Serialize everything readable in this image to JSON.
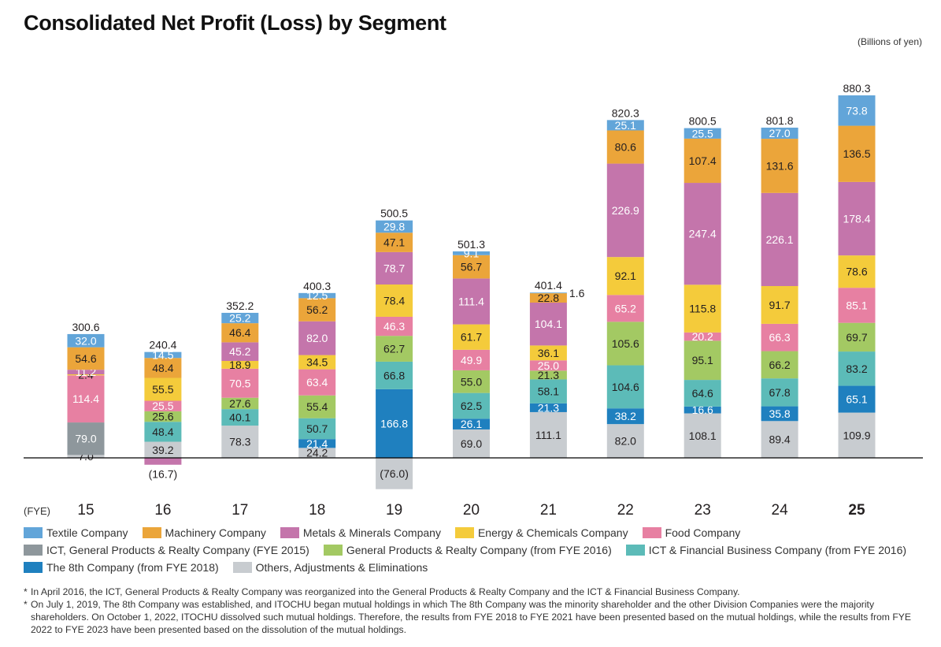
{
  "header": {
    "title": "Consolidated Net Profit (Loss) by Segment",
    "unit": "(Billions of yen)"
  },
  "axis": {
    "fye_label": "(FYE)"
  },
  "chart_data": {
    "type": "bar",
    "stacked": true,
    "title": "Consolidated Net Profit (Loss) by Segment",
    "xlabel": "(FYE)",
    "ylabel": "Billions of yen",
    "ylim": [
      -76.0,
      880.3
    ],
    "grid": false,
    "legend_position": "bottom",
    "categories": [
      "15",
      "16",
      "17",
      "18",
      "19",
      "20",
      "21",
      "22",
      "23",
      "24",
      "25"
    ],
    "highlight_category": "25",
    "totals": [
      "300.6",
      "240.4",
      "352.2",
      "400.3",
      "500.5",
      "501.3",
      "401.4",
      "820.3",
      "800.5",
      "801.8",
      "880.3"
    ],
    "series": [
      {
        "name": "Others, Adjustments & Eliminations",
        "color": "#c8ccd0",
        "label_color": "#231f20",
        "values": [
          7.0,
          39.2,
          78.3,
          24.2,
          -76.0,
          69.0,
          111.1,
          82.0,
          108.1,
          89.4,
          109.9
        ]
      },
      {
        "name": "ICT, General Products & Realty Company (FYE 2015)",
        "color": "#8e979c",
        "label_color": "#ffffff",
        "values": [
          79.0,
          null,
          null,
          null,
          null,
          null,
          null,
          null,
          null,
          null,
          null
        ]
      },
      {
        "name": "The 8th Company (from FYE 2018)",
        "color": "#1f80bf",
        "label_color": "#ffffff",
        "values": [
          null,
          null,
          null,
          21.4,
          166.8,
          26.1,
          21.3,
          38.2,
          16.6,
          35.8,
          65.1
        ]
      },
      {
        "name": "ICT & Financial Business Company (from FYE 2016)",
        "color": "#5cbbb8",
        "label_color": "#231f20",
        "values": [
          null,
          48.4,
          40.1,
          50.7,
          66.8,
          62.5,
          58.1,
          104.6,
          64.6,
          67.8,
          83.2
        ]
      },
      {
        "name": "General Products & Realty Company (from FYE 2016)",
        "color": "#a3c963",
        "label_color": "#231f20",
        "values": [
          null,
          25.6,
          27.6,
          55.4,
          62.7,
          55.0,
          21.3,
          105.6,
          95.1,
          66.2,
          69.7
        ]
      },
      {
        "name": "Food Company",
        "color": "#e780a2",
        "label_color": "#ffffff",
        "values": [
          114.4,
          25.5,
          70.5,
          63.4,
          46.3,
          49.9,
          25.0,
          65.2,
          20.2,
          66.3,
          85.1
        ]
      },
      {
        "name": "Energy & Chemicals Company",
        "color": "#f4cb3b",
        "label_color": "#231f20",
        "values": [
          2.4,
          55.5,
          18.9,
          34.5,
          78.4,
          61.7,
          36.1,
          92.1,
          115.8,
          91.7,
          78.6
        ]
      },
      {
        "name": "Metals & Minerals Company",
        "color": "#c475ab",
        "label_color": "#ffffff",
        "values": [
          11.2,
          -16.7,
          45.2,
          82.0,
          78.7,
          111.4,
          104.1,
          226.9,
          247.4,
          226.1,
          178.4
        ]
      },
      {
        "name": "Machinery Company",
        "color": "#eba53a",
        "label_color": "#231f20",
        "values": [
          54.6,
          48.4,
          46.4,
          56.2,
          47.1,
          56.7,
          22.8,
          80.6,
          107.4,
          131.6,
          136.5
        ]
      },
      {
        "name": "Textile Company",
        "color": "#62a5d9",
        "label_color": "#ffffff",
        "values": [
          32.0,
          14.5,
          25.2,
          12.5,
          29.8,
          9.1,
          1.6,
          25.1,
          25.5,
          27.0,
          73.8
        ]
      }
    ],
    "value_labels": {
      "negative_format": "(x)",
      "outside_labels": [
        {
          "category": "21",
          "series": "Textile Company",
          "text": "1.6"
        }
      ]
    }
  },
  "legend": {
    "rows": [
      [
        {
          "label": "Textile Company",
          "color": "#62a5d9"
        },
        {
          "label": "Machinery Company",
          "color": "#eba53a"
        },
        {
          "label": "Metals & Minerals Company",
          "color": "#c475ab"
        },
        {
          "label": "Energy & Chemicals Company",
          "color": "#f4cb3b"
        },
        {
          "label": "Food Company",
          "color": "#e780a2"
        }
      ],
      [
        {
          "label": "ICT, General Products & Realty Company (FYE 2015)",
          "color": "#8e979c"
        },
        {
          "label": "General Products & Realty Company (from FYE 2016)",
          "color": "#a3c963"
        },
        {
          "label": "ICT & Financial Business Company (from FYE 2016)",
          "color": "#5cbbb8"
        }
      ],
      [
        {
          "label": "The 8th Company (from FYE 2018)",
          "color": "#1f80bf"
        },
        {
          "label": "Others, Adjustments & Eliminations",
          "color": "#c8ccd0"
        }
      ]
    ]
  },
  "notes": [
    {
      "marker": "*",
      "text": "In April 2016, the ICT, General Products & Realty Company was reorganized into the General Products & Realty Company and the ICT & Financial Business Company."
    },
    {
      "marker": "*",
      "text": "On July 1, 2019, The 8th Company was established, and ITOCHU began mutual holdings in which The 8th Company was the minority shareholder and the other Division Companies were the majority shareholders. On October 1, 2022, ITOCHU dissolved such mutual holdings. Therefore, the results from FYE 2018 to FYE 2021 have been presented based on the mutual holdings, while the results from FYE 2022 to FYE 2023 have been presented based on the dissolution of the mutual holdings."
    }
  ]
}
